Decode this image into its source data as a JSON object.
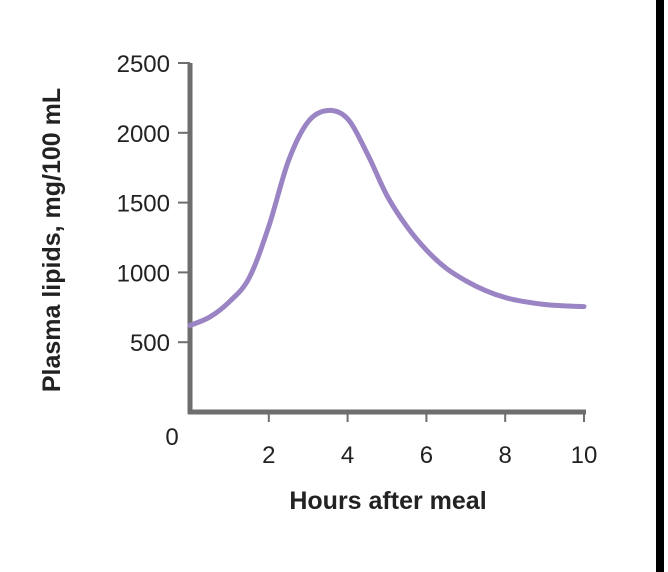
{
  "chart_data": {
    "type": "line",
    "title": "",
    "xlabel": "Hours after meal",
    "ylabel": "Plasma lipids, mg/100 mL",
    "xlim": [
      0,
      10
    ],
    "ylim": [
      0,
      2500
    ],
    "x_ticks": [
      2,
      4,
      6,
      8,
      10
    ],
    "y_ticks": [
      500,
      1000,
      1500,
      2000,
      2500
    ],
    "origin_label": "0",
    "grid": false,
    "legend": "none",
    "line_color": "#9a84c4",
    "axis_color": "#6e6e6e",
    "series": [
      {
        "x": [
          0,
          0.5,
          1,
          1.5,
          2,
          2.5,
          3,
          3.5,
          4,
          4.5,
          5,
          5.5,
          6,
          6.5,
          7,
          7.5,
          8,
          8.5,
          9,
          9.5,
          10
        ],
        "y": [
          620,
          680,
          790,
          960,
          1330,
          1800,
          2080,
          2160,
          2100,
          1850,
          1550,
          1330,
          1160,
          1030,
          940,
          870,
          820,
          790,
          770,
          760,
          755
        ]
      }
    ]
  }
}
